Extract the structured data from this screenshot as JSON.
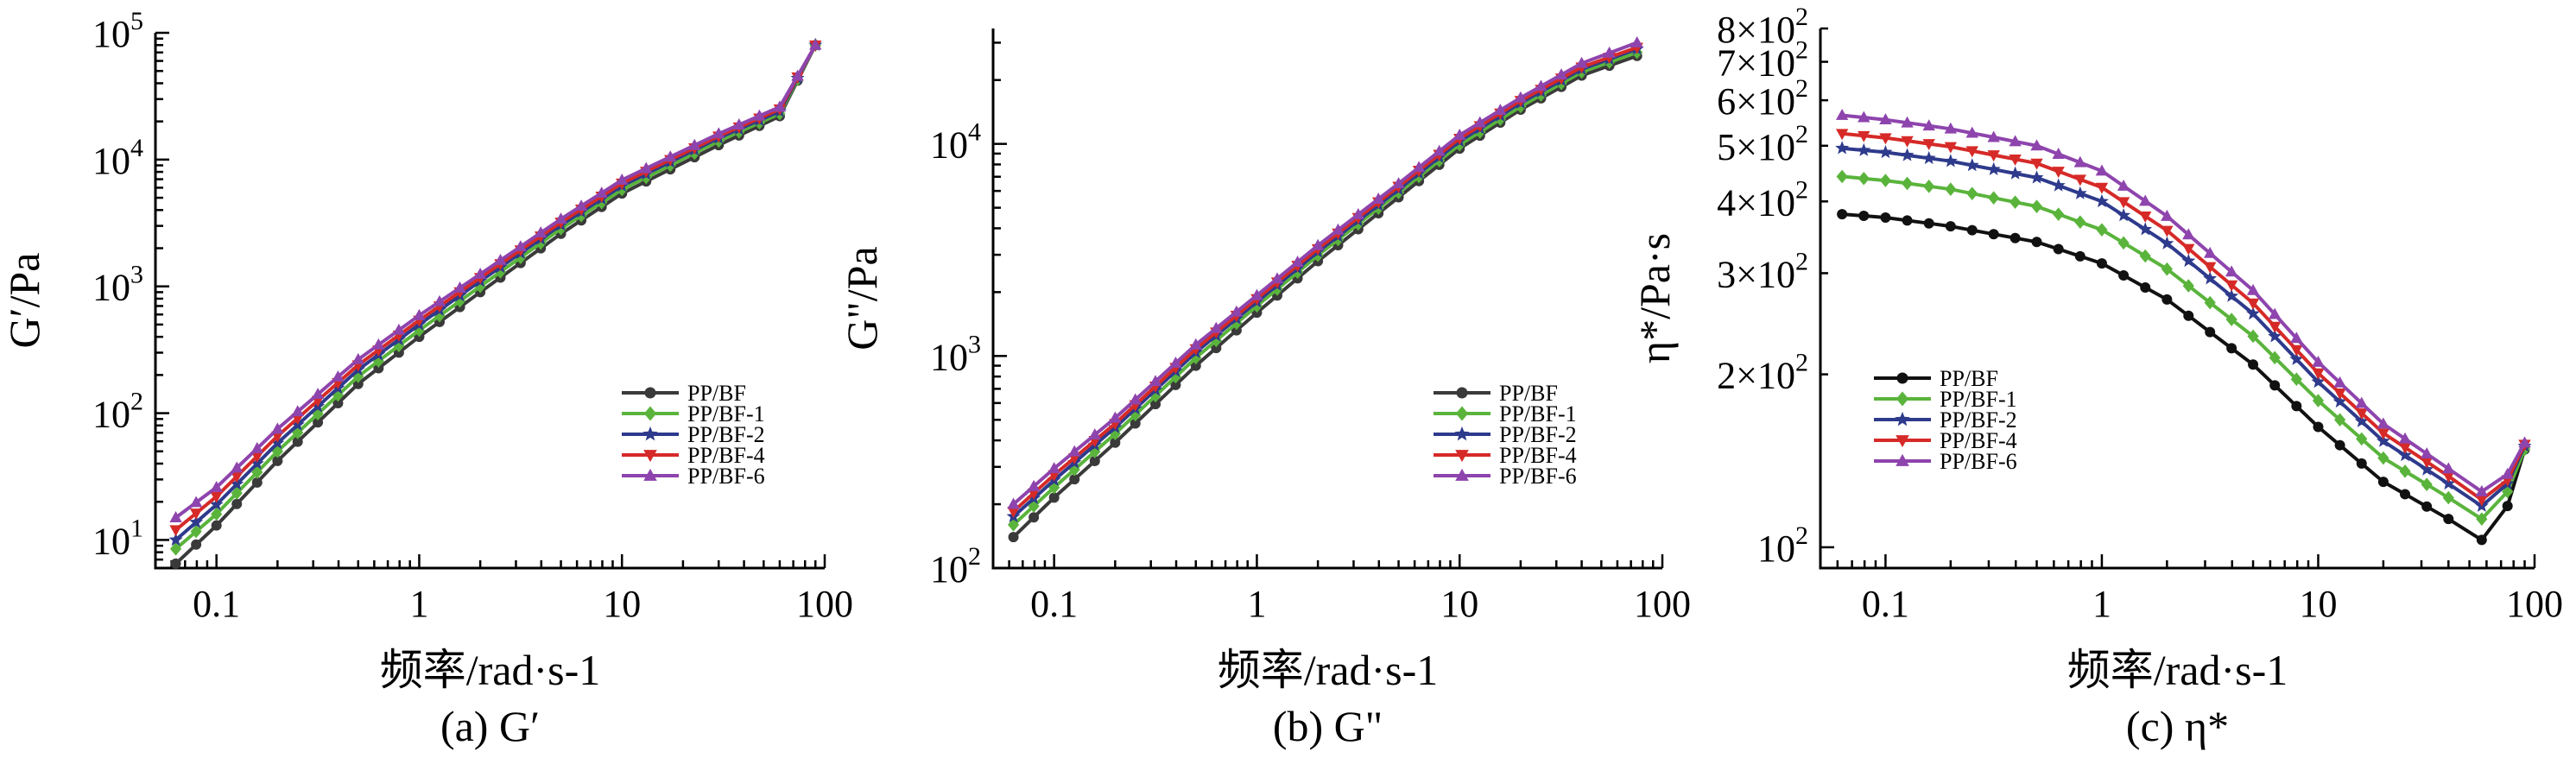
{
  "chart_data": [
    {
      "id": "a",
      "type": "line",
      "xscale": "log",
      "yscale": "log",
      "xlim": [
        0.05,
        100
      ],
      "ylim": [
        6,
        100000
      ],
      "xticks": [
        0.1,
        1,
        10,
        100
      ],
      "xtick_labels": [
        "0.1",
        "1",
        "10",
        "100"
      ],
      "yticks": [
        10,
        100,
        1000,
        10000,
        100000
      ],
      "ytick_labels": [
        [
          "10",
          "1"
        ],
        [
          "10",
          "2"
        ],
        [
          "10",
          "3"
        ],
        [
          "10",
          "4"
        ],
        [
          "10",
          "5"
        ]
      ],
      "xlabel": "频率/rad·s-1",
      "ylabel": "G′/Pa",
      "caption": "(a) G′",
      "legend_position": "lower-right",
      "grid": false,
      "series": [
        {
          "name": "PP/BF",
          "color": "#3a3a3a",
          "marker": "circle",
          "x": [
            0.063,
            0.1,
            0.2,
            0.5,
            1,
            2,
            5,
            10,
            30,
            60,
            90
          ],
          "y": [
            6.5,
            13,
            42,
            170,
            400,
            900,
            2600,
            5400,
            13000,
            22000,
            80000
          ]
        },
        {
          "name": "PP/BF-1",
          "color": "#5ab43c",
          "marker": "diamond",
          "x": [
            0.063,
            0.1,
            0.2,
            0.5,
            1,
            2,
            5,
            10,
            30,
            60,
            90
          ],
          "y": [
            8.5,
            16,
            50,
            195,
            450,
            1000,
            2850,
            5800,
            14000,
            23000,
            80000
          ]
        },
        {
          "name": "PP/BF-2",
          "color": "#2e3a8c",
          "marker": "star",
          "x": [
            0.063,
            0.1,
            0.2,
            0.5,
            1,
            2,
            5,
            10,
            30,
            60,
            90
          ],
          "y": [
            10,
            19,
            58,
            220,
            500,
            1100,
            3050,
            6200,
            14800,
            24000,
            80000
          ]
        },
        {
          "name": "PP/BF-4",
          "color": "#d62a28",
          "marker": "triangle-down",
          "x": [
            0.063,
            0.1,
            0.2,
            0.5,
            1,
            2,
            5,
            10,
            30,
            60,
            90
          ],
          "y": [
            12,
            22,
            66,
            240,
            540,
            1170,
            3200,
            6500,
            15300,
            25000,
            80000
          ]
        },
        {
          "name": "PP/BF-6",
          "color": "#8e44ad",
          "marker": "triangle-up",
          "x": [
            0.063,
            0.1,
            0.2,
            0.5,
            1,
            2,
            5,
            10,
            30,
            60,
            90
          ],
          "y": [
            15,
            26,
            75,
            265,
            590,
            1250,
            3400,
            6900,
            16000,
            26000,
            80000
          ]
        }
      ]
    },
    {
      "id": "b",
      "type": "line",
      "xscale": "log",
      "yscale": "log",
      "xlim": [
        0.05,
        100
      ],
      "ylim": [
        100,
        35000
      ],
      "xticks": [
        0.1,
        1,
        10,
        100
      ],
      "xtick_labels": [
        "0.1",
        "1",
        "10",
        "100"
      ],
      "yticks": [
        100,
        1000,
        10000
      ],
      "ytick_labels": [
        [
          "10",
          "2"
        ],
        [
          "10",
          "3"
        ],
        [
          "10",
          "4"
        ]
      ],
      "xlabel": "频率/rad·s-1",
      "ylabel": "G\"/Pa",
      "caption": "(b) G\"",
      "legend_position": "lower-right",
      "grid": false,
      "series": [
        {
          "name": "PP/BF",
          "color": "#3a3a3a",
          "marker": "circle",
          "x": [
            0.063,
            0.1,
            0.2,
            0.5,
            1,
            2,
            5,
            10,
            20,
            40,
            75
          ],
          "y": [
            140,
            215,
            390,
            900,
            1600,
            2800,
            5600,
            9500,
            14500,
            21000,
            26000
          ]
        },
        {
          "name": "PP/BF-1",
          "color": "#5ab43c",
          "marker": "diamond",
          "x": [
            0.063,
            0.1,
            0.2,
            0.5,
            1,
            2,
            5,
            10,
            20,
            40,
            75
          ],
          "y": [
            160,
            240,
            430,
            980,
            1720,
            2980,
            5900,
            9900,
            15000,
            21800,
            27000
          ]
        },
        {
          "name": "PP/BF-2",
          "color": "#2e3a8c",
          "marker": "star",
          "x": [
            0.063,
            0.1,
            0.2,
            0.5,
            1,
            2,
            5,
            10,
            20,
            40,
            75
          ],
          "y": [
            175,
            260,
            460,
            1040,
            1800,
            3100,
            6100,
            10300,
            15600,
            22500,
            28000
          ]
        },
        {
          "name": "PP/BF-4",
          "color": "#d62a28",
          "marker": "triangle-down",
          "x": [
            0.063,
            0.1,
            0.2,
            0.5,
            1,
            2,
            5,
            10,
            20,
            40,
            75
          ],
          "y": [
            185,
            275,
            480,
            1080,
            1860,
            3200,
            6300,
            10600,
            16000,
            23000,
            28500
          ]
        },
        {
          "name": "PP/BF-6",
          "color": "#8e44ad",
          "marker": "triangle-up",
          "x": [
            0.063,
            0.1,
            0.2,
            0.5,
            1,
            2,
            5,
            10,
            20,
            40,
            75
          ],
          "y": [
            200,
            295,
            510,
            1130,
            1930,
            3320,
            6500,
            11000,
            16500,
            24000,
            30000
          ]
        }
      ]
    },
    {
      "id": "c",
      "type": "line",
      "xscale": "log",
      "yscale": "log",
      "xlim": [
        0.05,
        100
      ],
      "ylim": [
        92,
        800
      ],
      "xticks": [
        0.1,
        1,
        10,
        100
      ],
      "xtick_labels": [
        "0.1",
        "1",
        "10",
        "100"
      ],
      "yticks": [
        100,
        200,
        300,
        400,
        500,
        600,
        700,
        800
      ],
      "ytick_labels": [
        [
          "10",
          "2"
        ],
        [
          "2×10",
          "2"
        ],
        [
          "3×10",
          "2"
        ],
        [
          "4×10",
          "2"
        ],
        [
          "5×10",
          "2"
        ],
        [
          "6×10",
          "2"
        ],
        [
          "7×10",
          "2"
        ],
        [
          "8×10",
          "2"
        ]
      ],
      "xlabel": "频率/rad·s-1",
      "ylabel": "η*/Pa·s",
      "caption": "(c) η*",
      "legend_position": "lower-left",
      "grid": false,
      "series": [
        {
          "name": "PP/BF",
          "color": "#111111",
          "marker": "circle",
          "x": [
            0.063,
            0.1,
            0.2,
            0.5,
            1,
            2,
            5,
            10,
            20,
            40,
            57,
            75,
            90
          ],
          "y": [
            380,
            375,
            362,
            340,
            312,
            270,
            208,
            162,
            130,
            112,
            103,
            118,
            148
          ]
        },
        {
          "name": "PP/BF-1",
          "color": "#5ab43c",
          "marker": "diamond",
          "x": [
            0.063,
            0.1,
            0.2,
            0.5,
            1,
            2,
            5,
            10,
            20,
            40,
            57,
            75,
            90
          ],
          "y": [
            442,
            435,
            420,
            392,
            357,
            305,
            233,
            180,
            143,
            122,
            112,
            125,
            148
          ]
        },
        {
          "name": "PP/BF-2",
          "color": "#2e3a8c",
          "marker": "star",
          "x": [
            0.063,
            0.1,
            0.2,
            0.5,
            1,
            2,
            5,
            10,
            20,
            40,
            57,
            75,
            90
          ],
          "y": [
            495,
            487,
            470,
            440,
            400,
            338,
            255,
            194,
            153,
            129,
            118,
            129,
            150
          ]
        },
        {
          "name": "PP/BF-4",
          "color": "#d62a28",
          "marker": "triangle-down",
          "x": [
            0.063,
            0.1,
            0.2,
            0.5,
            1,
            2,
            5,
            10,
            20,
            40,
            57,
            75,
            90
          ],
          "y": [
            525,
            516,
            498,
            466,
            423,
            356,
            266,
            201,
            158,
            133,
            121,
            131,
            151
          ]
        },
        {
          "name": "PP/BF-6",
          "color": "#8e44ad",
          "marker": "triangle-up",
          "x": [
            0.063,
            0.1,
            0.2,
            0.5,
            1,
            2,
            5,
            10,
            20,
            40,
            57,
            75,
            90
          ],
          "y": [
            565,
            555,
            535,
            500,
            452,
            377,
            280,
            210,
            164,
            137,
            125,
            134,
            152
          ]
        }
      ]
    }
  ]
}
